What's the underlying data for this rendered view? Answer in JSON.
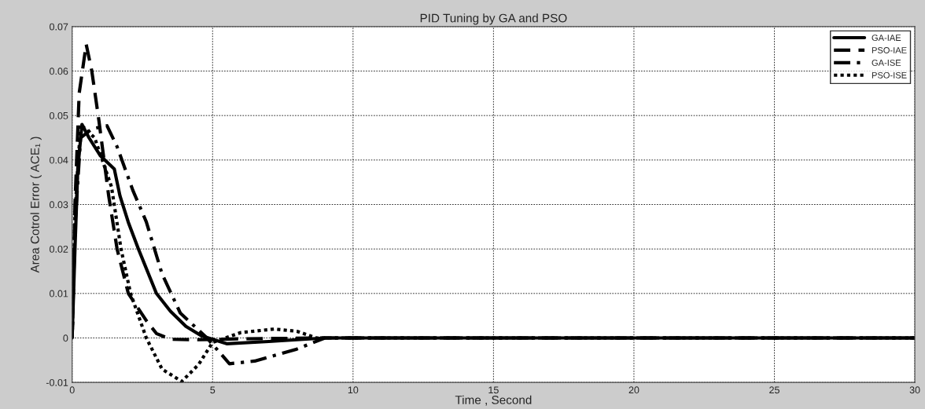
{
  "chart_data": {
    "type": "line",
    "title": "PID Tuning by GA and PSO",
    "xlabel": "Time , Second",
    "ylabel": "Area Cotrol Error ( ACE₁ )",
    "xlim": [
      0,
      30
    ],
    "xticks": [
      0,
      5,
      10,
      15,
      20,
      25,
      30
    ],
    "ylim": [
      -0.01,
      0.07
    ],
    "yticks": [
      -0.01,
      0,
      0.01,
      0.02,
      0.03,
      0.04,
      0.05,
      0.06,
      0.07
    ],
    "grid": true,
    "legend": "top right",
    "series": [
      {
        "name": "GA-IAE",
        "color": "#000000",
        "line_style": "solid",
        "x": [
          0,
          0.1,
          0.2,
          0.35,
          0.6,
          1.0,
          1.5,
          1.7,
          2.0,
          2.36,
          3.0,
          3.5,
          4.05,
          4.6,
          5.5,
          7,
          9,
          12,
          30
        ],
        "values": [
          0,
          0.02,
          0.038,
          0.048,
          0.045,
          0.041,
          0.038,
          0.032,
          0.026,
          0.02,
          0.01,
          0.006,
          0.0026,
          0.0005,
          -0.0013,
          -0.0008,
          0,
          0,
          0
        ]
      },
      {
        "name": "PSO-IAE",
        "color": "#000000",
        "line_style": "dashed",
        "x": [
          0,
          0.1,
          0.25,
          0.5,
          0.7,
          0.95,
          1.3,
          1.6,
          2.0,
          2.64,
          3.0,
          3.5,
          4.5,
          6,
          9,
          12,
          30
        ],
        "values": [
          0,
          0.03,
          0.055,
          0.066,
          0.06,
          0.049,
          0.032,
          0.02,
          0.01,
          0.0039,
          0.001,
          -0.0003,
          -0.0004,
          -0.0002,
          0,
          0,
          0
        ]
      },
      {
        "name": "GA-ISE",
        "color": "#000000",
        "line_style": "dashdot",
        "x": [
          0,
          0.1,
          0.3,
          0.7,
          1.24,
          1.6,
          2.16,
          2.64,
          3.2,
          3.85,
          4.8,
          5.6,
          6.5,
          8,
          9,
          12,
          30
        ],
        "values": [
          0,
          0.025,
          0.045,
          0.047,
          0.0477,
          0.043,
          0.0332,
          0.0261,
          0.0144,
          0.0056,
          0,
          -0.0058,
          -0.0052,
          -0.0025,
          0,
          0,
          0
        ]
      },
      {
        "name": "PSO-ISE",
        "color": "#000000",
        "line_style": "dotted",
        "x": [
          0,
          0.1,
          0.3,
          0.8,
          1.4,
          1.74,
          2.08,
          2.64,
          3.2,
          3.9,
          4.5,
          5.0,
          6.0,
          7.2,
          8.0,
          8.7,
          12,
          30
        ],
        "values": [
          0,
          0.028,
          0.048,
          0.045,
          0.034,
          0.02,
          0.01,
          0,
          -0.007,
          -0.0098,
          -0.006,
          -0.001,
          0.0012,
          0.002,
          0.0015,
          0,
          0,
          0
        ]
      }
    ]
  }
}
